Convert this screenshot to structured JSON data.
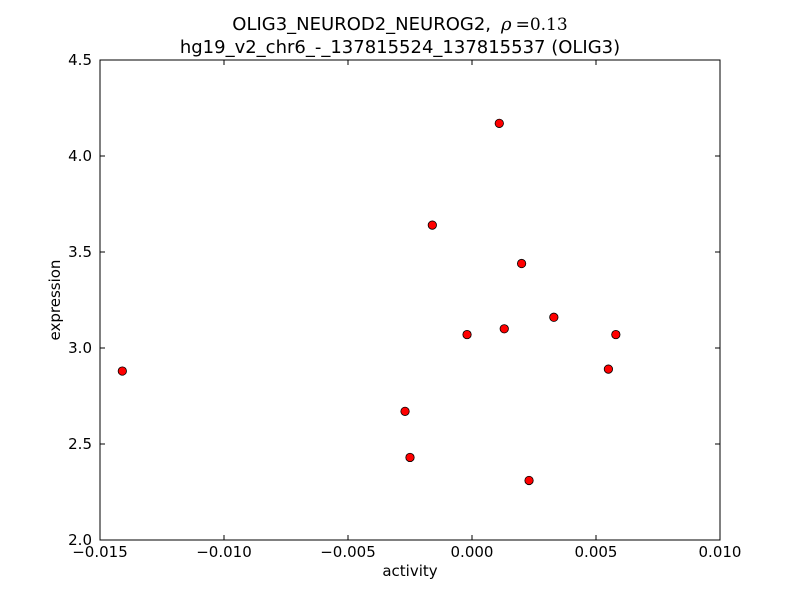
{
  "chart_data": {
    "type": "scatter",
    "title_prefix": "OLIG3_NEUROD2_NEUROG2,",
    "title_rho_symbol": "ρ",
    "title_rho_value": "=0.13",
    "subtitle": "hg19_v2_chr6_-_137815524_137815537 (OLIG3)",
    "xlabel": "activity",
    "ylabel": "expression",
    "xlim": [
      -0.015,
      0.01
    ],
    "ylim": [
      2.0,
      4.5
    ],
    "xticks": [
      -0.015,
      -0.01,
      -0.005,
      0.0,
      0.005,
      0.01
    ],
    "xtick_labels": [
      "−0.015",
      "−0.010",
      "−0.005",
      "0.000",
      "0.005",
      "0.010"
    ],
    "yticks": [
      2.0,
      2.5,
      3.0,
      3.5,
      4.0,
      4.5
    ],
    "ytick_labels": [
      "2.0",
      "2.5",
      "3.0",
      "3.5",
      "4.0",
      "4.5"
    ],
    "grid": false,
    "marker_color": "#ff0000",
    "marker_edge_color": "#000000",
    "points": [
      {
        "x": -0.0141,
        "y": 2.88
      },
      {
        "x": -0.0027,
        "y": 2.67
      },
      {
        "x": -0.0025,
        "y": 2.43
      },
      {
        "x": -0.0016,
        "y": 3.64
      },
      {
        "x": -0.0002,
        "y": 3.07
      },
      {
        "x": 0.0011,
        "y": 4.17
      },
      {
        "x": 0.0013,
        "y": 3.1
      },
      {
        "x": 0.002,
        "y": 3.44
      },
      {
        "x": 0.0023,
        "y": 2.31
      },
      {
        "x": 0.0033,
        "y": 3.16
      },
      {
        "x": 0.0055,
        "y": 2.89
      },
      {
        "x": 0.0058,
        "y": 3.07
      }
    ]
  }
}
